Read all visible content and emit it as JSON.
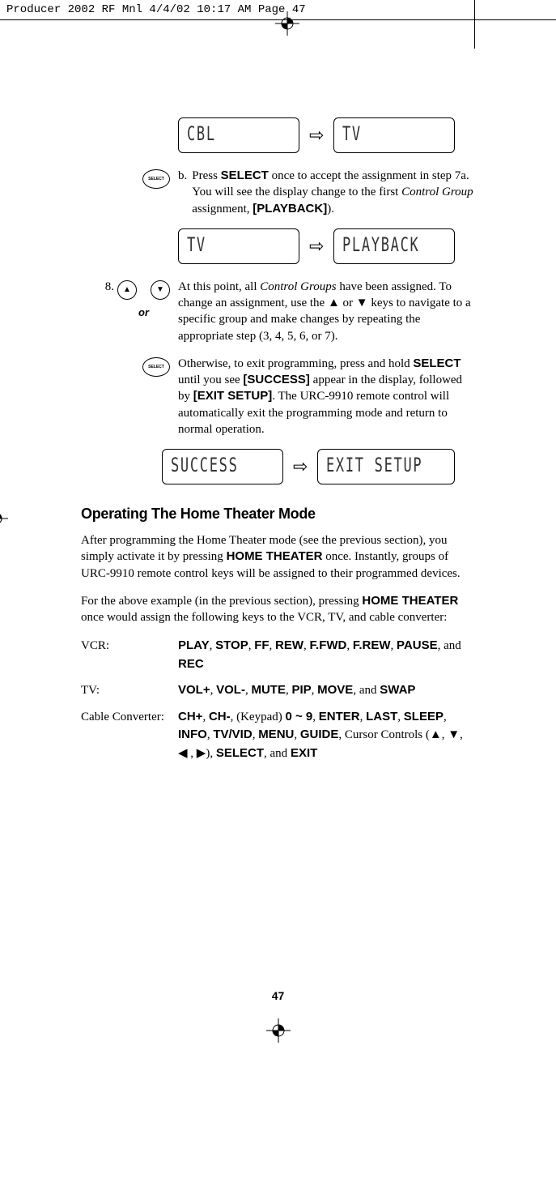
{
  "cropHeader": "Producer 2002 RF Mnl  4/4/02  10:17 AM  Page 47",
  "lcd": {
    "row1": {
      "left": "CBL",
      "right": "TV"
    },
    "row2": {
      "left": "TV",
      "right": "PLAYBACK"
    },
    "row3": {
      "left": "SUCCESS",
      "right": "EXIT SETUP"
    }
  },
  "stepB": {
    "letter": "b.",
    "text_pre": "Press ",
    "text_select": "SELECT",
    "text_mid": " once to accept the assignment in step 7a. You will see the display change to the first ",
    "text_italic": "Control Group",
    "text_post": " assignment, ",
    "text_playback": "[PLAYBACK]",
    "text_end": ")."
  },
  "step8": {
    "num": "8.",
    "or": "or",
    "para1_pre": "At this point, all ",
    "para1_italic": "Control Groups",
    "para1_post": " have been assigned. To change an assignment, use the ▲ or ▼ keys to navigate to a specific group and make changes by repeating the appropriate step (3, 4, 5, 6, or 7).",
    "para2_pre": "Otherwise, to exit programming, press and hold ",
    "para2_select": "SELECT",
    "para2_mid1": " until you see ",
    "para2_success": "[SUCCESS]",
    "para2_mid2": " appear in the display, followed by ",
    "para2_exit": "[EXIT SETUP]",
    "para2_post": ". The URC-9910 remote control will automatically exit the programming mode and return to normal operation."
  },
  "heading": "Operating The Home Theater Mode",
  "para1_pre": "After programming the Home Theater mode (see the previous section), you simply activate it by pressing ",
  "para1_ht": "HOME THEATER",
  "para1_post": " once. Instantly, groups of URC-9910 remote control keys will be assigned to their programmed devices.",
  "para2_pre": "For the above example (in the previous section), pressing ",
  "para2_ht": "HOME THEATER",
  "para2_post": " once would assign the following keys to the VCR, TV, and cable converter:",
  "devices": {
    "vcr": {
      "label": "VCR:",
      "keys": [
        "PLAY",
        "STOP",
        "FF",
        "REW",
        "F.FWD",
        "F.REW",
        "PAUSE"
      ],
      "joiner": ", and ",
      "last": "REC"
    },
    "tv": {
      "label": "TV:",
      "keys": [
        "VOL+",
        "VOL-",
        "MUTE",
        "PIP",
        "MOVE"
      ],
      "joiner": ", and ",
      "last": "SWAP"
    },
    "cable": {
      "label": "Cable Converter:",
      "pre_keys": [
        "CH+",
        " CH-"
      ],
      "keypad_text": ", (Keypad) ",
      "keypad_range": "0 ~ 9",
      "mid_keys": [
        "ENTER",
        "LAST",
        "SLEEP",
        "INFO",
        "TV/VID",
        " MENU",
        "GUIDE"
      ],
      "cursor_text": ", Cursor Controls (▲, ▼, ◀ , ▶), ",
      "end_keys": [
        "SELECT"
      ],
      "joiner": ", and ",
      "last": "EXIT"
    }
  },
  "selectLabel": "SELECT",
  "pageNum": "47"
}
